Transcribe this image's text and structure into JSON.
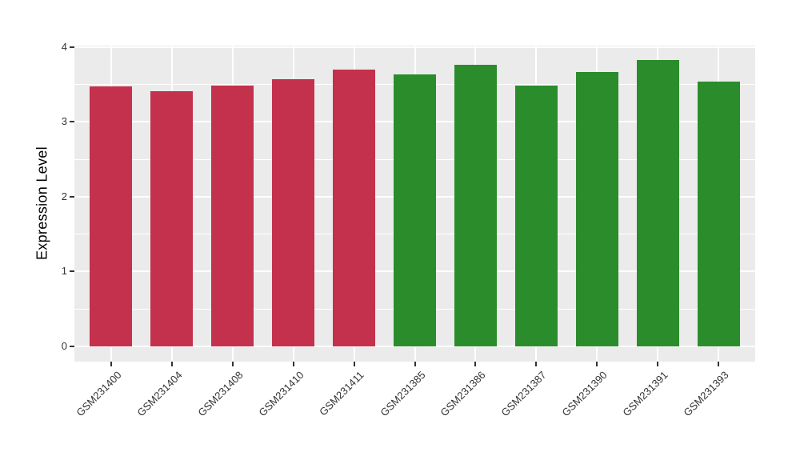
{
  "chart_data": {
    "type": "bar",
    "title": "",
    "xlabel": "",
    "ylabel": "Expression Level",
    "ylim": [
      0,
      4
    ],
    "yticks": [
      0,
      1,
      2,
      3,
      4
    ],
    "minor_yticks": [
      0.5,
      1.5,
      2.5,
      3.5
    ],
    "grid": true,
    "legend_position": "none",
    "categories": [
      "GSM231400",
      "GSM231404",
      "GSM231408",
      "GSM231410",
      "GSM231411",
      "GSM231385",
      "GSM231386",
      "GSM231387",
      "GSM231390",
      "GSM231391",
      "GSM231393"
    ],
    "values": [
      3.47,
      3.41,
      3.48,
      3.57,
      3.7,
      3.63,
      3.76,
      3.48,
      3.67,
      3.83,
      3.54
    ],
    "bar_colors": [
      "#C3314C",
      "#C3314C",
      "#C3314C",
      "#C3314C",
      "#C3314C",
      "#2A8C2A",
      "#2A8C2A",
      "#2A8C2A",
      "#2A8C2A",
      "#2A8C2A",
      "#2A8C2A"
    ],
    "groups": [
      {
        "name": "red-group",
        "color": "#C3314C",
        "samples": [
          "GSM231400",
          "GSM231404",
          "GSM231408",
          "GSM231410",
          "GSM231411"
        ]
      },
      {
        "name": "green-group",
        "color": "#2A8C2A",
        "samples": [
          "GSM231385",
          "GSM231386",
          "GSM231387",
          "GSM231390",
          "GSM231391",
          "GSM231393"
        ]
      }
    ],
    "colors": {
      "figure_background": "#FFFFFF",
      "panel_background": "#EBEBEB",
      "gridline": "#FFFFFF",
      "axis_text": "#333333",
      "axis_title": "#000000"
    }
  }
}
